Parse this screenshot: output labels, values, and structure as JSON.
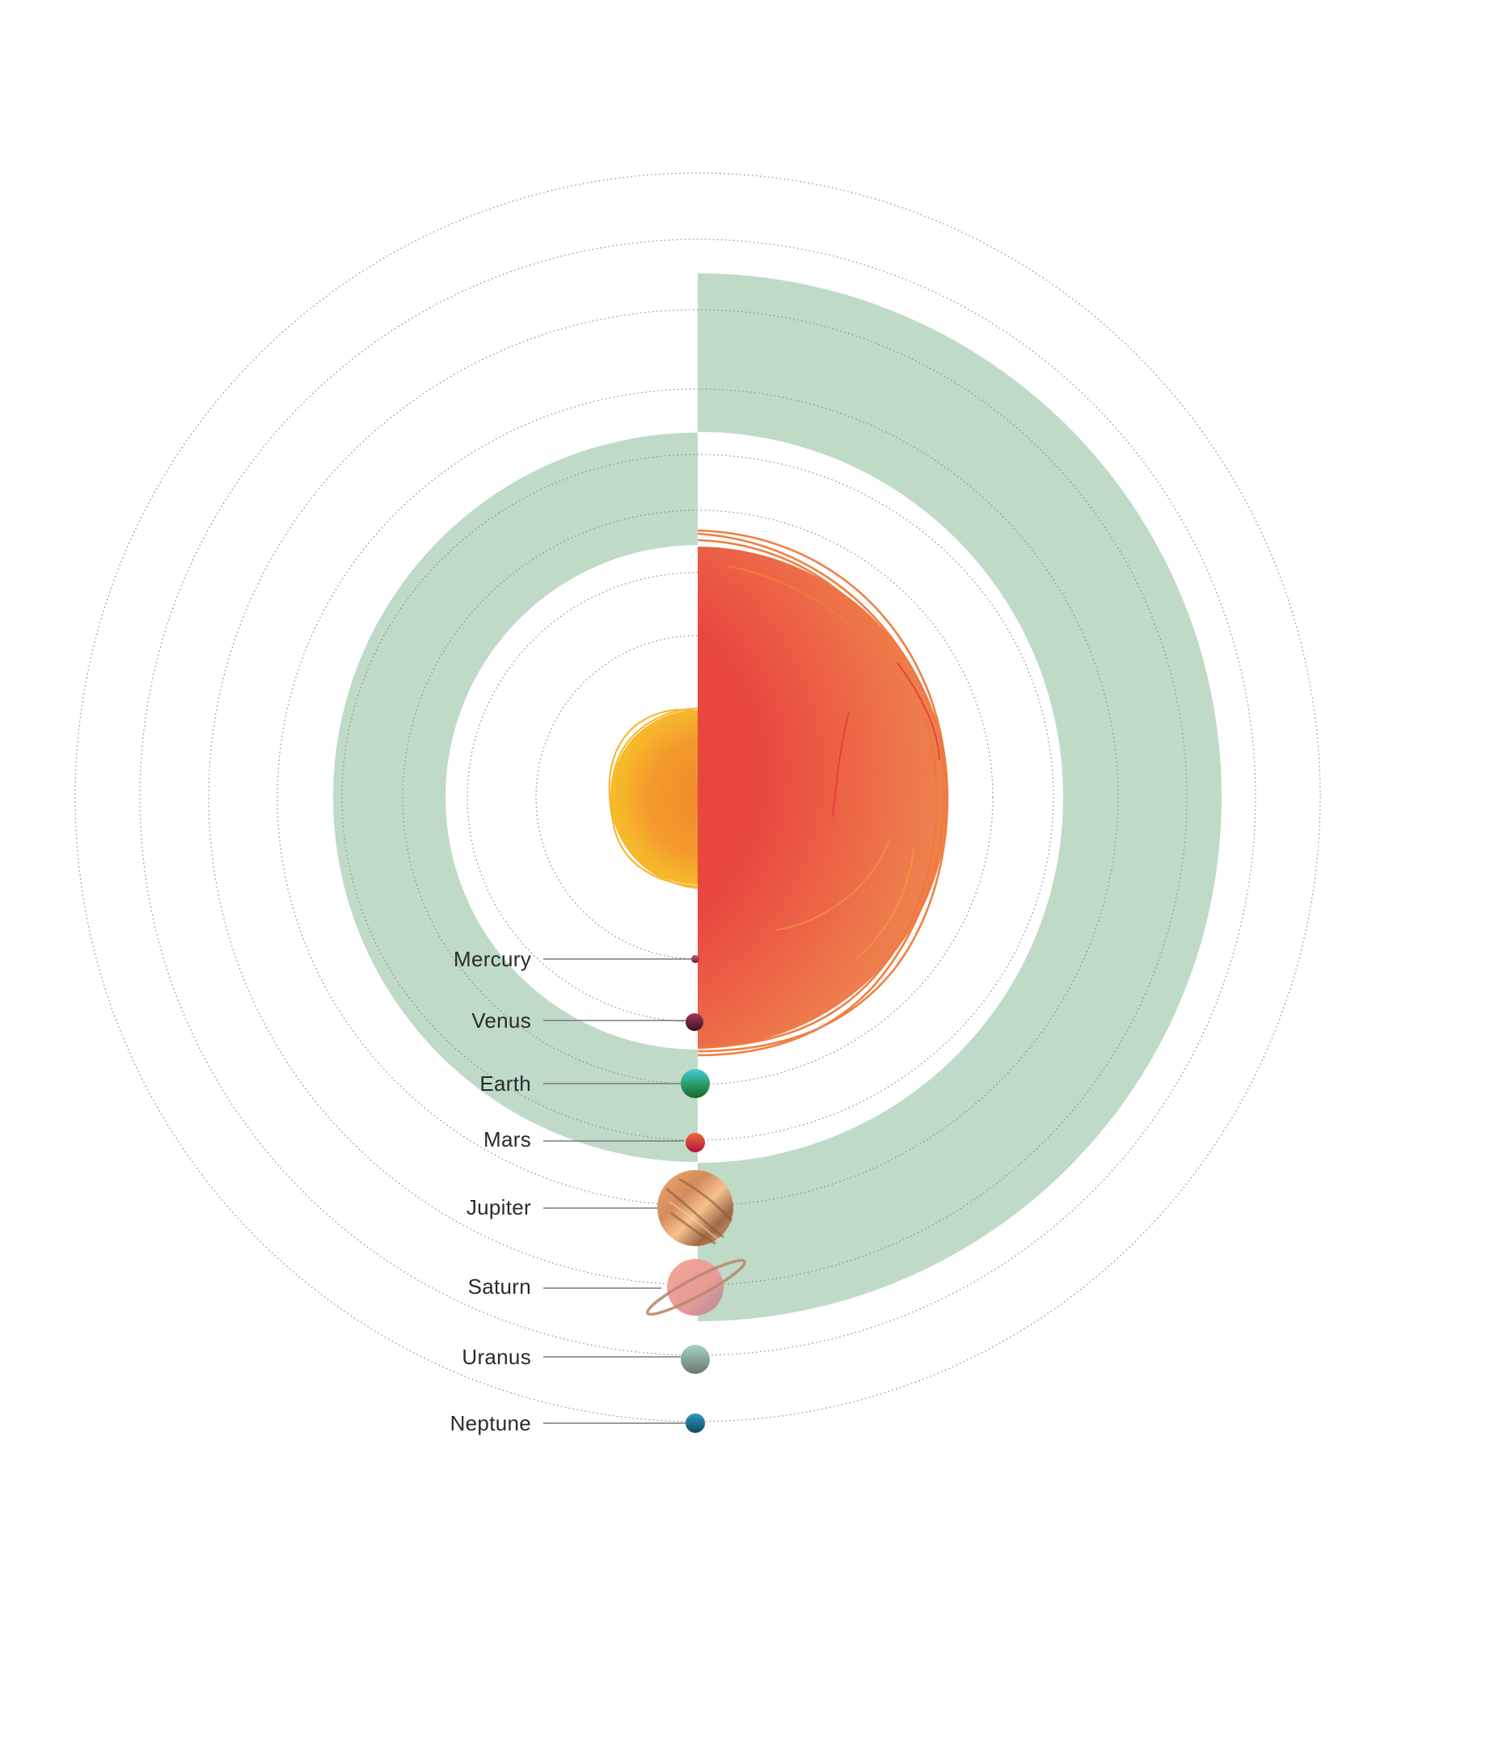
{
  "colors": {
    "background": "#ffffff",
    "zone_band": "#c0dac8",
    "orbit_line": "#8a8a8a",
    "leader_line": "#7a7a7a",
    "label_text": "#2b2b2b",
    "sun_small_core": "#f0922a",
    "sun_small_edge": "#f7b52a",
    "sun_large_core": "#e8453c",
    "sun_large_edge": "#ef8a50"
  },
  "suns": [
    {
      "name": "sun-small-icon",
      "description": "yellow-orange star (left half)"
    },
    {
      "name": "sun-large-icon",
      "description": "red-orange star (right half)"
    }
  ],
  "planets": [
    {
      "id": "mercury",
      "label": "Mercury",
      "icon": "mercury-icon",
      "colors": [
        "#b24a6a",
        "#6b1e3a"
      ]
    },
    {
      "id": "venus",
      "label": "Venus",
      "icon": "venus-icon",
      "colors": [
        "#8a2e4f",
        "#3d0f22"
      ]
    },
    {
      "id": "earth",
      "label": "Earth",
      "icon": "earth-icon",
      "colors": [
        "#3ec4d8",
        "#1a6e2a"
      ]
    },
    {
      "id": "mars",
      "label": "Mars",
      "icon": "mars-icon",
      "colors": [
        "#f05a3a",
        "#b0123c"
      ]
    },
    {
      "id": "jupiter",
      "label": "Jupiter",
      "icon": "jupiter-icon",
      "colors": [
        "#e9a66a",
        "#8a5a3a"
      ]
    },
    {
      "id": "saturn",
      "label": "Saturn",
      "icon": "saturn-icon",
      "colors": [
        "#f2a49a",
        "#b47a86"
      ]
    },
    {
      "id": "uranus",
      "label": "Uranus",
      "icon": "uranus-icon",
      "colors": [
        "#9cc4b4",
        "#6a7a72"
      ]
    },
    {
      "id": "neptune",
      "label": "Neptune",
      "icon": "neptune-icon",
      "colors": [
        "#2a86b4",
        "#0d4a5e"
      ]
    }
  ]
}
